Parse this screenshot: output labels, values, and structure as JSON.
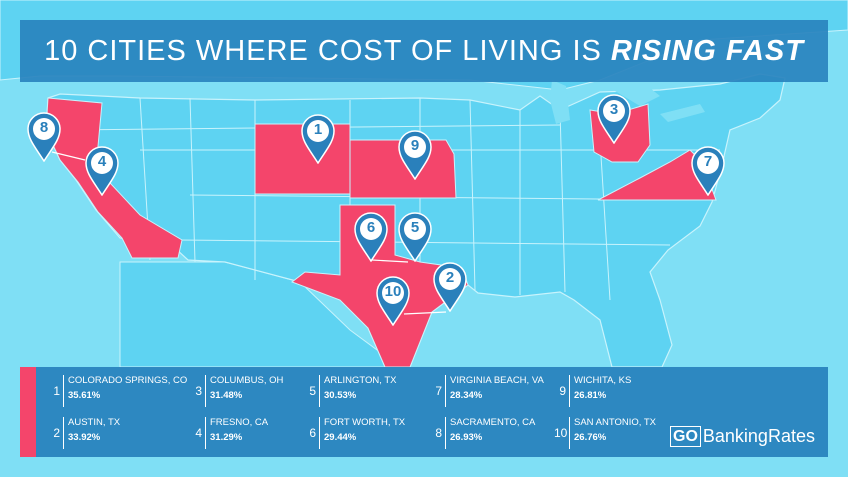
{
  "colors": {
    "background": "#7fdff5",
    "state_default": "#5ed3f2",
    "state_border": "#c8f3fc",
    "state_highlight": "#f4456b",
    "panel": "#2983be",
    "marker": "#2a80bb"
  },
  "icon": "location-pin-icon",
  "title": {
    "main": "10 CITIES WHERE COST OF LIVING IS",
    "emphasis": "RISING FAST"
  },
  "highlighted_states": [
    "California",
    "Colorado",
    "Kansas",
    "Texas",
    "Ohio",
    "Virginia"
  ],
  "markers": [
    {
      "number": "1"
    },
    {
      "number": "2"
    },
    {
      "number": "3"
    },
    {
      "number": "4"
    },
    {
      "number": "5"
    },
    {
      "number": "6"
    },
    {
      "number": "7"
    },
    {
      "number": "8"
    },
    {
      "number": "9"
    },
    {
      "number": "10"
    }
  ],
  "legend": [
    {
      "rank": "1",
      "city": "COLORADO SPRINGS, CO",
      "pct": "35.61%"
    },
    {
      "rank": "2",
      "city": "AUSTIN, TX",
      "pct": "33.92%"
    },
    {
      "rank": "3",
      "city": "COLUMBUS, OH",
      "pct": "31.48%"
    },
    {
      "rank": "4",
      "city": "FRESNO, CA",
      "pct": "31.29%"
    },
    {
      "rank": "5",
      "city": "ARLINGTON, TX",
      "pct": "30.53%"
    },
    {
      "rank": "6",
      "city": "FORT WORTH, TX",
      "pct": "29.44%"
    },
    {
      "rank": "7",
      "city": "VIRGINIA BEACH, VA",
      "pct": "28.34%"
    },
    {
      "rank": "8",
      "city": "SACRAMENTO, CA",
      "pct": "26.93%"
    },
    {
      "rank": "9",
      "city": "WICHITA, KS",
      "pct": "26.81%"
    },
    {
      "rank": "10",
      "city": "SAN ANTONIO, TX",
      "pct": "26.76%"
    }
  ],
  "brand": {
    "go": "GO",
    "rest": "BankingRates"
  }
}
